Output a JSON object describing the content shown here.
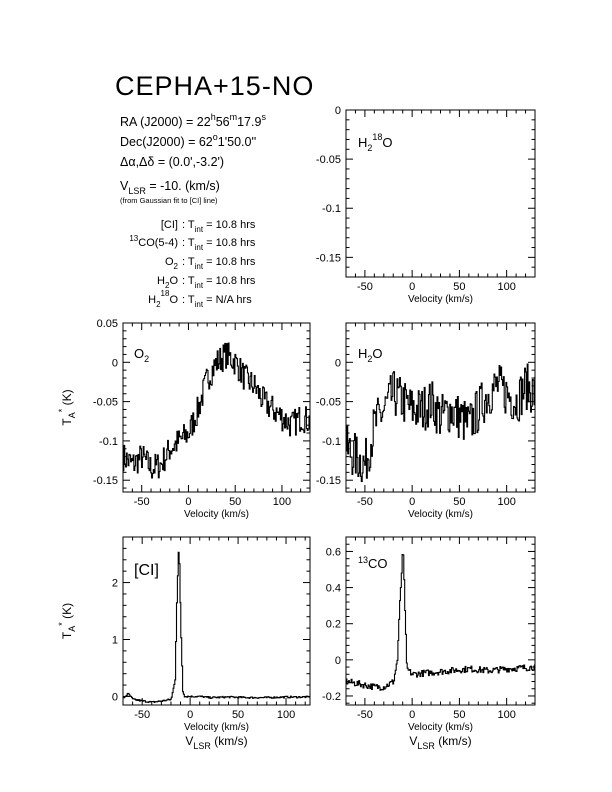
{
  "header": {
    "source_name": "CEPHA+15-NO",
    "ra": {
      "label": "RA (J2000) = ",
      "h": "22",
      "h_unit": "h",
      "m": "56",
      "m_unit": "m",
      "s": "17.9",
      "s_unit": "s"
    },
    "dec": {
      "label": "Dec(J2000) = ",
      "d": "62",
      "d_unit": "o",
      "rest": "1'50.0''"
    },
    "offset": {
      "label": "Δα,Δδ = ",
      "value": "(0.0',-3.2')"
    },
    "vlsr": {
      "label_main": "V",
      "label_sub": "LSR",
      "value": " = -10. (km/s)"
    },
    "vlsr_note": "(from Gaussian fit to [CI] line)",
    "integrations": [
      {
        "line_pre": "",
        "line_sup": "",
        "line_main": "[CI]",
        "line_sub": "",
        "line_post": "",
        "t_label": "T",
        "t_sub": "int",
        "value": " = 10.8 hrs"
      },
      {
        "line_pre": "",
        "line_sup": "13",
        "line_main": "CO(5-4)",
        "line_sub": "",
        "line_post": "",
        "t_label": "T",
        "t_sub": "int",
        "value": " = 10.8 hrs"
      },
      {
        "line_pre": "",
        "line_sup": "",
        "line_main": "O",
        "line_sub": "2",
        "line_post": "",
        "t_label": "T",
        "t_sub": "int",
        "value": " = 10.8 hrs"
      },
      {
        "line_pre": "",
        "line_sup": "",
        "line_main": "H",
        "line_sub": "2",
        "line_post": "O",
        "t_label": "T",
        "t_sub": "int",
        "value": " = 10.8 hrs"
      },
      {
        "line_pre": "H",
        "line_sup": "18",
        "line_main": "O",
        "line_sub": "2",
        "line_post": "",
        "t_label": "T",
        "t_sub": "int",
        "value": " = N/A hrs"
      }
    ]
  },
  "chart_data": [
    {
      "type": "line",
      "id": "h2_18o",
      "label": {
        "main": "H",
        "sub": "2",
        "sup": "18",
        "tail": "O"
      },
      "xlabel": "Velocity (km/s)",
      "ylabel": "",
      "xlim": [
        -70,
        130
      ],
      "ylim": [
        -0.17,
        0.0
      ],
      "xticks": [
        -50,
        0,
        50,
        100
      ],
      "xtick_labels": [
        "-50",
        "0",
        "50",
        "100"
      ],
      "yticks": [
        0,
        -0.05,
        -0.1,
        -0.15
      ],
      "ytick_labels": [
        "0",
        "-0.05",
        "-0.1",
        "-0.15"
      ],
      "series": []
    },
    {
      "type": "line",
      "id": "o2",
      "label": {
        "main": "O",
        "sub": "2",
        "sup": "",
        "tail": ""
      },
      "xlabel": "Velocity (km/s)",
      "ylabel_main": "T",
      "ylabel_sub": "A",
      "ylabel_sup": "*",
      "ylabel_unit": " (K)",
      "xlim": [
        -70,
        130
      ],
      "ylim": [
        -0.165,
        0.05
      ],
      "xticks": [
        -50,
        0,
        50,
        100
      ],
      "xtick_labels": [
        "-50",
        "0",
        "50",
        "100"
      ],
      "yticks": [
        0.05,
        0,
        -0.05,
        -0.1,
        -0.15
      ],
      "ytick_labels": [
        "0.05",
        "0",
        "-0.05",
        "-0.1",
        "-0.15"
      ],
      "series": [
        {
          "x": [
            -70,
            -60,
            -50,
            -40,
            -30,
            -20,
            -10,
            0,
            10,
            20,
            30,
            40,
            50,
            60,
            70,
            80,
            90,
            100,
            110,
            120,
            130
          ],
          "values": [
            -0.12,
            -0.13,
            -0.12,
            -0.135,
            -0.13,
            -0.11,
            -0.1,
            -0.09,
            -0.06,
            -0.02,
            0.0,
            0.01,
            0.0,
            -0.02,
            -0.03,
            -0.05,
            -0.06,
            -0.07,
            -0.08,
            -0.07,
            -0.075
          ]
        }
      ]
    },
    {
      "type": "line",
      "id": "h2o",
      "label": {
        "main": "H",
        "sub": "2",
        "sup": "",
        "tail": "O"
      },
      "xlabel": "Velocity (km/s)",
      "ylabel": "",
      "xlim": [
        -70,
        130
      ],
      "ylim": [
        -0.165,
        0.05
      ],
      "xticks": [
        -50,
        0,
        50,
        100
      ],
      "xtick_labels": [
        "-50",
        "0",
        "50",
        "100"
      ],
      "yticks": [
        0,
        -0.05,
        -0.1,
        -0.15
      ],
      "ytick_labels": [
        "0",
        "-0.05",
        "-0.1",
        "-0.15"
      ],
      "series": [
        {
          "x": [
            -70,
            -60,
            -50,
            -40,
            -30,
            -20,
            -10,
            0,
            10,
            20,
            30,
            40,
            50,
            60,
            70,
            80,
            90,
            100,
            110,
            120,
            130
          ],
          "values": [
            -0.11,
            -0.12,
            -0.13,
            -0.08,
            -0.06,
            -0.04,
            -0.05,
            -0.06,
            -0.06,
            -0.05,
            -0.07,
            -0.06,
            -0.07,
            -0.08,
            -0.06,
            -0.04,
            -0.03,
            -0.04,
            -0.05,
            -0.03,
            -0.04
          ]
        }
      ]
    },
    {
      "type": "line",
      "id": "ci",
      "label": {
        "main": "[CI]",
        "sub": "",
        "sup": "",
        "tail": ""
      },
      "xlabel_main": "Velocity (km/s)",
      "xlabel2_main": "V",
      "xlabel2_sub": "LSR",
      "xlabel2_unit": " (km/s)",
      "ylabel_main": "T",
      "ylabel_sub": "A",
      "ylabel_sup": "*",
      "ylabel_unit": " (K)",
      "xlim": [
        -70,
        125
      ],
      "ylim": [
        -0.15,
        2.8
      ],
      "xticks": [
        -50,
        0,
        50,
        100
      ],
      "xtick_labels": [
        "-50",
        "0",
        "50",
        "100"
      ],
      "yticks": [
        2,
        1,
        0
      ],
      "ytick_labels": [
        "2",
        "1",
        "0"
      ],
      "series": [
        {
          "x": [
            -70,
            -65,
            -60,
            -50,
            -40,
            -30,
            -20,
            -16,
            -14,
            -12,
            -10,
            -8,
            -6,
            0,
            10,
            20,
            40,
            60,
            80,
            100,
            125
          ],
          "values": [
            -0.03,
            0.05,
            -0.05,
            -0.08,
            -0.1,
            -0.08,
            -0.05,
            0.3,
            1.8,
            2.7,
            1.2,
            0.1,
            0.0,
            0.0,
            0.0,
            -0.02,
            -0.01,
            -0.02,
            -0.02,
            -0.01,
            -0.01
          ]
        }
      ]
    },
    {
      "type": "line",
      "id": "13co",
      "label": {
        "main": "CO",
        "sub": "",
        "sup": "13",
        "tail": ""
      },
      "xlabel_main": "Velocity (km/s)",
      "xlabel2_main": "V",
      "xlabel2_sub": "LSR",
      "xlabel2_unit": " (km/s)",
      "ylabel": "",
      "xlim": [
        -70,
        130
      ],
      "ylim": [
        -0.25,
        0.68
      ],
      "xticks": [
        -50,
        0,
        50,
        100
      ],
      "xtick_labels": [
        "-50",
        "0",
        "50",
        "100"
      ],
      "yticks": [
        0.6,
        0.4,
        0.2,
        0,
        -0.2
      ],
      "ytick_labels": [
        "0.6",
        "0.4",
        "0.2",
        "0",
        "-0.2"
      ],
      "series": [
        {
          "x": [
            -70,
            -60,
            -50,
            -40,
            -30,
            -20,
            -16,
            -13,
            -10,
            -8,
            -6,
            0,
            20,
            40,
            60,
            80,
            100,
            130
          ],
          "values": [
            -0.12,
            -0.13,
            -0.14,
            -0.15,
            -0.15,
            -0.12,
            0.0,
            0.35,
            0.62,
            0.3,
            -0.05,
            -0.08,
            -0.07,
            -0.06,
            -0.05,
            -0.06,
            -0.05,
            -0.04
          ]
        }
      ]
    }
  ]
}
